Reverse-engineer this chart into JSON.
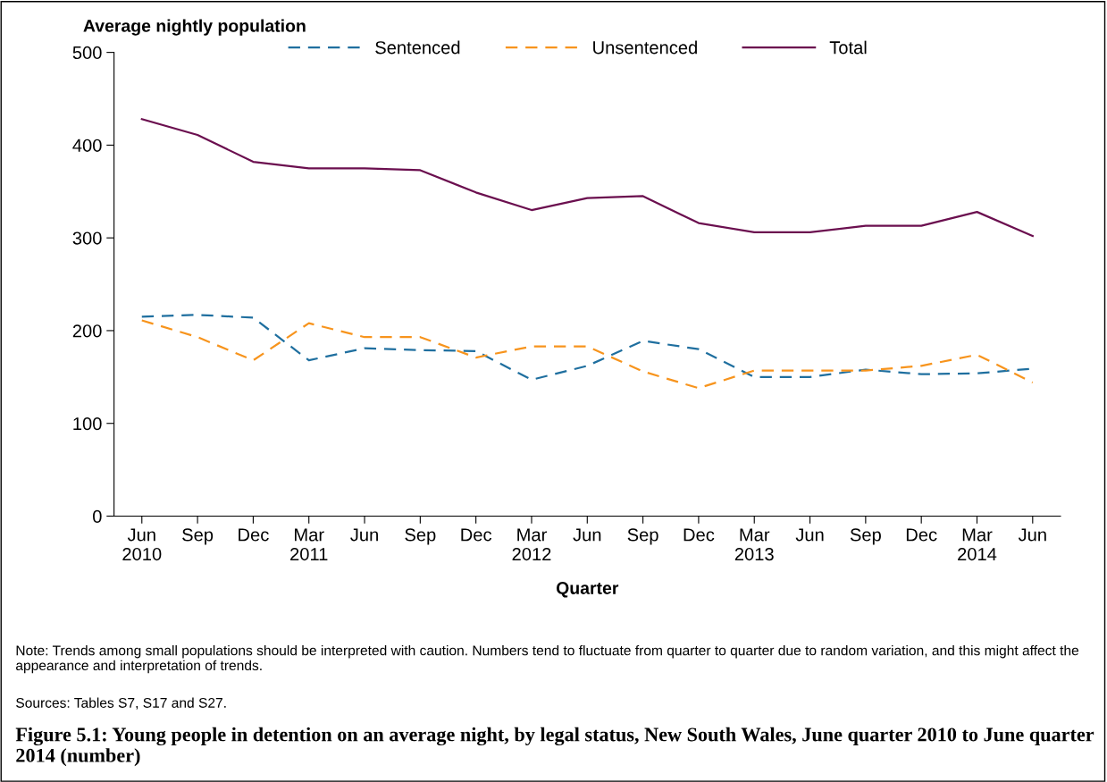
{
  "chart_data": {
    "type": "line",
    "title": "Figure 5.1: Young people in detention on an average night, by legal status, New South Wales, June quarter 2010 to June quarter 2014 (number)",
    "ylabel": "Average nightly population",
    "xlabel": "Quarter",
    "categories": [
      "Jun\n2010",
      "Sep",
      "Dec",
      "Mar\n2011",
      "Jun",
      "Sep",
      "Dec",
      "Mar\n2012",
      "Jun",
      "Sep",
      "Dec",
      "Mar\n2013",
      "Jun",
      "Sep",
      "Dec",
      "Mar\n2014",
      "Jun"
    ],
    "series": [
      {
        "name": "Sentenced",
        "color": "#1f6f9f",
        "line_style": "dashed",
        "values": [
          215,
          217,
          214,
          168,
          181,
          179,
          178,
          147,
          162,
          189,
          180,
          150,
          150,
          158,
          153,
          154,
          159
        ]
      },
      {
        "name": "Unsentenced",
        "color": "#f7941d",
        "line_style": "dashed",
        "values": [
          211,
          193,
          168,
          208,
          193,
          193,
          171,
          183,
          183,
          156,
          138,
          157,
          157,
          157,
          162,
          174,
          144
        ]
      },
      {
        "name": "Total",
        "color": "#6b0f4f",
        "line_style": "solid",
        "values": [
          428,
          411,
          382,
          375,
          375,
          373,
          349,
          330,
          343,
          345,
          316,
          306,
          306,
          313,
          313,
          328,
          302
        ]
      }
    ],
    "ylim": [
      0,
      500
    ],
    "yticks": [
      0,
      100,
      200,
      300,
      400,
      500
    ],
    "grid": false,
    "legend": "top",
    "marker": "none",
    "annotations": [
      "Note: Trends among small populations should be interpreted with caution. Numbers tend to fluctuate from quarter to quarter due to random variation, and this might affect the appearance and interpretation of trends.",
      "Sources: Tables S7, S17 and S27."
    ]
  }
}
